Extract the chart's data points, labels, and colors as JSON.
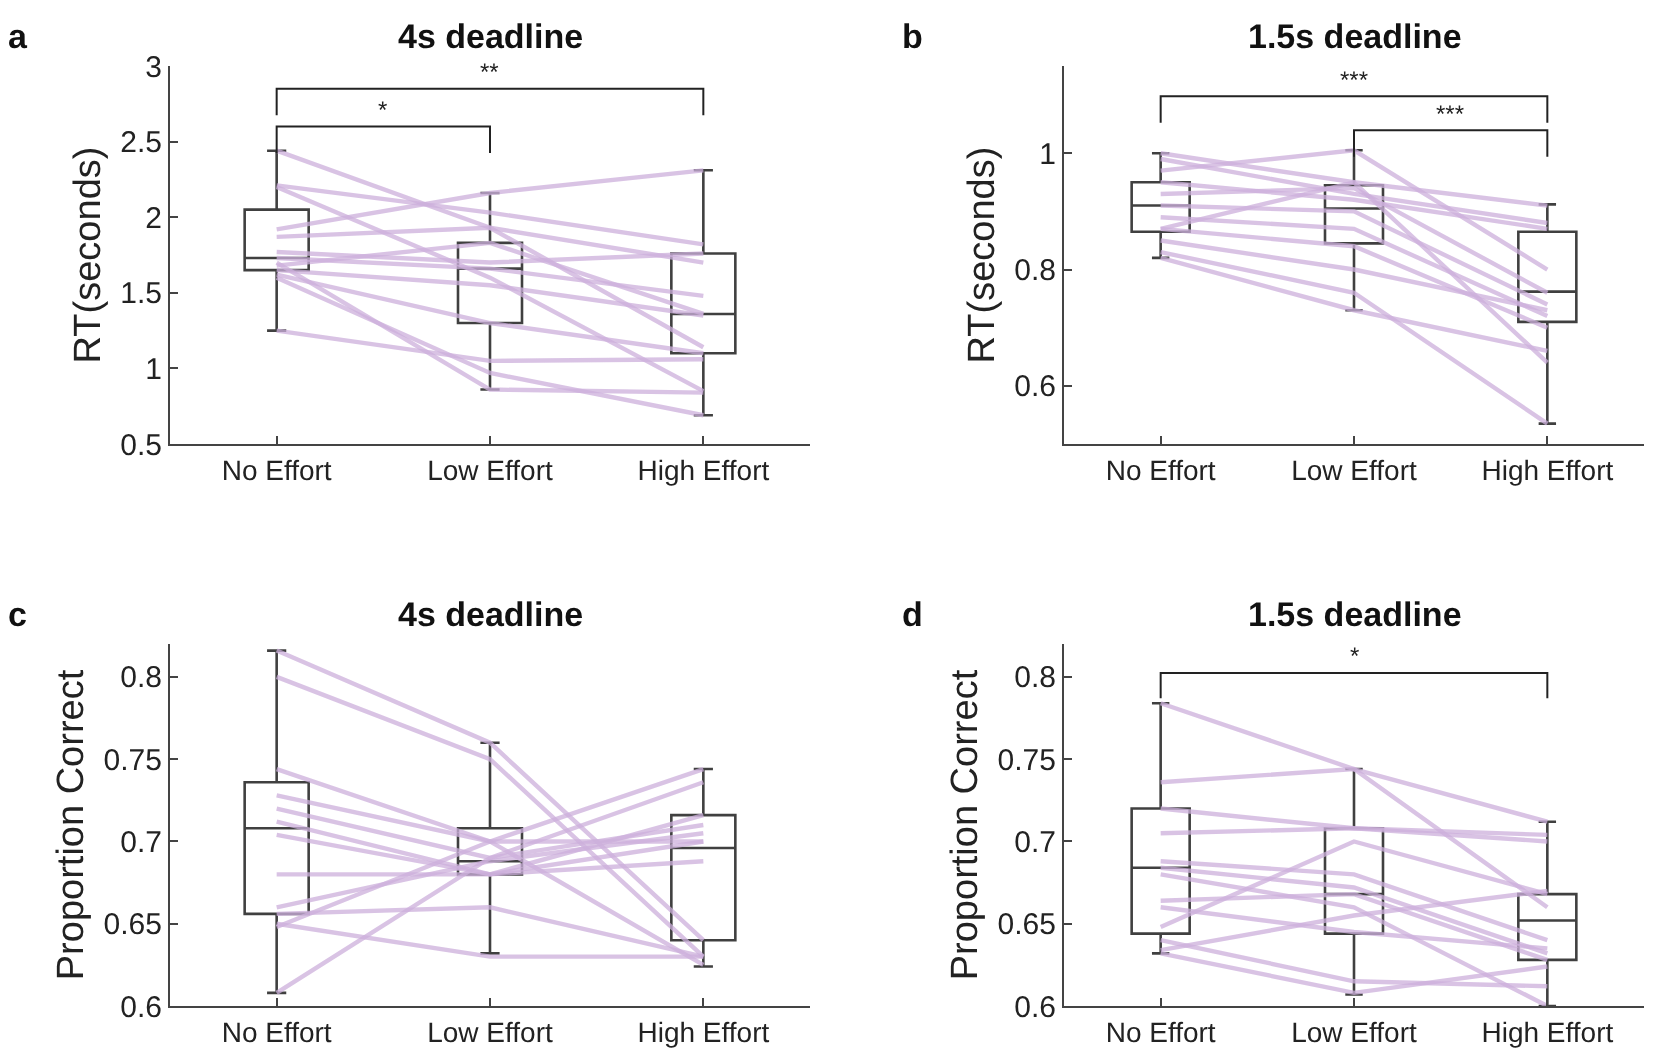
{
  "chart_data": [
    {
      "type": "box",
      "title": "4s deadline",
      "ylabel": "RT(seconds)",
      "categories": [
        "No Effort",
        "Low Effort",
        "High Effort"
      ],
      "ylim": [
        0.5,
        3
      ],
      "yticks": [
        0.5,
        1,
        1.5,
        2,
        2.5,
        3
      ],
      "annotations": [
        "a",
        "*",
        "**"
      ],
      "series": [
        {
          "type": "box",
          "color": "#404040",
          "boxes": [
            {
              "low": 1.25,
              "q1": 1.65,
              "median": 1.73,
              "q3": 2.05,
              "high": 2.44
            },
            {
              "low": 0.86,
              "q1": 1.3,
              "median": 1.66,
              "q3": 1.83,
              "high": 2.16
            },
            {
              "low": 0.69,
              "q1": 1.1,
              "median": 1.36,
              "q3": 1.76,
              "high": 2.31
            }
          ]
        },
        {
          "type": "line",
          "color": "#cdb0dc",
          "values": [
            2.44,
            1.93,
            1.14
          ]
        },
        {
          "type": "line",
          "color": "#cdb0dc",
          "values": [
            2.21,
            2.03,
            1.82
          ]
        },
        {
          "type": "line",
          "color": "#cdb0dc",
          "values": [
            1.92,
            2.16,
            2.31
          ]
        },
        {
          "type": "line",
          "color": "#cdb0dc",
          "values": [
            1.87,
            1.93,
            1.7
          ]
        },
        {
          "type": "line",
          "color": "#cdb0dc",
          "values": [
            1.77,
            1.7,
            1.76
          ]
        },
        {
          "type": "line",
          "color": "#cdb0dc",
          "values": [
            1.73,
            1.66,
            1.48
          ]
        },
        {
          "type": "line",
          "color": "#cdb0dc",
          "values": [
            1.68,
            1.83,
            1.36
          ]
        },
        {
          "type": "line",
          "color": "#cdb0dc",
          "values": [
            1.65,
            1.55,
            1.35
          ]
        },
        {
          "type": "line",
          "color": "#cdb0dc",
          "values": [
            1.62,
            1.3,
            1.1
          ]
        },
        {
          "type": "line",
          "color": "#cdb0dc",
          "values": [
            1.6,
            0.97,
            0.69
          ]
        },
        {
          "type": "line",
          "color": "#cdb0dc",
          "values": [
            1.25,
            1.05,
            1.06
          ]
        },
        {
          "type": "line",
          "color": "#cdb0dc",
          "values": [
            2.2,
            1.6,
            0.85
          ]
        },
        {
          "type": "line",
          "color": "#cdb0dc",
          "values": [
            1.7,
            0.86,
            0.84
          ]
        }
      ]
    },
    {
      "type": "box",
      "title": "1.5s deadline",
      "ylabel": "RT(seconds)",
      "categories": [
        "No Effort",
        "Low Effort",
        "High Effort"
      ],
      "ylim": [
        0.5,
        1.15
      ],
      "yticks": [
        0.6,
        0.8,
        1
      ],
      "annotations": [
        "b",
        "***",
        "***"
      ],
      "series": [
        {
          "type": "box",
          "color": "#404040",
          "boxes": [
            {
              "low": 0.82,
              "q1": 0.865,
              "median": 0.91,
              "q3": 0.95,
              "high": 1.0
            },
            {
              "low": 0.73,
              "q1": 0.845,
              "median": 0.905,
              "q3": 0.945,
              "high": 1.005
            },
            {
              "low": 0.535,
              "q1": 0.71,
              "median": 0.762,
              "q3": 0.865,
              "high": 0.912
            }
          ]
        },
        {
          "type": "line",
          "color": "#cdb0dc",
          "values": [
            1.0,
            0.95,
            0.91
          ]
        },
        {
          "type": "line",
          "color": "#cdb0dc",
          "values": [
            0.99,
            0.93,
            0.88
          ]
        },
        {
          "type": "line",
          "color": "#cdb0dc",
          "values": [
            0.97,
            1.005,
            0.8
          ]
        },
        {
          "type": "line",
          "color": "#cdb0dc",
          "values": [
            0.95,
            0.92,
            0.87
          ]
        },
        {
          "type": "line",
          "color": "#cdb0dc",
          "values": [
            0.93,
            0.94,
            0.76
          ]
        },
        {
          "type": "line",
          "color": "#cdb0dc",
          "values": [
            0.91,
            0.9,
            0.74
          ]
        },
        {
          "type": "line",
          "color": "#cdb0dc",
          "values": [
            0.89,
            0.87,
            0.72
          ]
        },
        {
          "type": "line",
          "color": "#cdb0dc",
          "values": [
            0.87,
            0.84,
            0.7
          ]
        },
        {
          "type": "line",
          "color": "#cdb0dc",
          "values": [
            0.87,
            0.95,
            0.64
          ]
        },
        {
          "type": "line",
          "color": "#cdb0dc",
          "values": [
            0.85,
            0.8,
            0.73
          ]
        },
        {
          "type": "line",
          "color": "#cdb0dc",
          "values": [
            0.83,
            0.76,
            0.535
          ]
        },
        {
          "type": "line",
          "color": "#cdb0dc",
          "values": [
            0.82,
            0.73,
            0.66
          ]
        }
      ]
    },
    {
      "type": "box",
      "title": "4s deadline",
      "ylabel": "Proportion Correct",
      "categories": [
        "No Effort",
        "Low Effort",
        "High Effort"
      ],
      "ylim": [
        0.6,
        0.82
      ],
      "yticks": [
        0.6,
        0.65,
        0.7,
        0.75,
        0.8
      ],
      "annotations": [
        "c"
      ],
      "series": [
        {
          "type": "box",
          "color": "#404040",
          "boxes": [
            {
              "low": 0.608,
              "q1": 0.656,
              "median": 0.708,
              "q3": 0.736,
              "high": 0.816
            },
            {
              "low": 0.632,
              "q1": 0.68,
              "median": 0.688,
              "q3": 0.708,
              "high": 0.76
            },
            {
              "low": 0.624,
              "q1": 0.64,
              "median": 0.696,
              "q3": 0.716,
              "high": 0.744
            }
          ]
        },
        {
          "type": "line",
          "color": "#cdb0dc",
          "values": [
            0.816,
            0.76,
            0.64
          ]
        },
        {
          "type": "line",
          "color": "#cdb0dc",
          "values": [
            0.8,
            0.75,
            0.63
          ]
        },
        {
          "type": "line",
          "color": "#cdb0dc",
          "values": [
            0.744,
            0.7,
            0.625
          ]
        },
        {
          "type": "line",
          "color": "#cdb0dc",
          "values": [
            0.728,
            0.7,
            0.7
          ]
        },
        {
          "type": "line",
          "color": "#cdb0dc",
          "values": [
            0.72,
            0.69,
            0.71
          ]
        },
        {
          "type": "line",
          "color": "#cdb0dc",
          "values": [
            0.712,
            0.68,
            0.688
          ]
        },
        {
          "type": "line",
          "color": "#cdb0dc",
          "values": [
            0.704,
            0.68,
            0.716
          ]
        },
        {
          "type": "line",
          "color": "#cdb0dc",
          "values": [
            0.68,
            0.68,
            0.7
          ]
        },
        {
          "type": "line",
          "color": "#cdb0dc",
          "values": [
            0.656,
            0.66,
            0.63
          ]
        },
        {
          "type": "line",
          "color": "#cdb0dc",
          "values": [
            0.65,
            0.63,
            0.63
          ]
        },
        {
          "type": "line",
          "color": "#cdb0dc",
          "values": [
            0.648,
            0.7,
            0.744
          ]
        },
        {
          "type": "line",
          "color": "#cdb0dc",
          "values": [
            0.608,
            0.69,
            0.736
          ]
        },
        {
          "type": "line",
          "color": "#cdb0dc",
          "values": [
            0.66,
            0.688,
            0.705
          ]
        }
      ]
    },
    {
      "type": "box",
      "title": "1.5s deadline",
      "ylabel": "Proportion Correct",
      "categories": [
        "No Effort",
        "Low Effort",
        "High Effort"
      ],
      "ylim": [
        0.6,
        0.82
      ],
      "yticks": [
        0.6,
        0.65,
        0.7,
        0.75,
        0.8
      ],
      "annotations": [
        "d",
        "*"
      ],
      "series": [
        {
          "type": "box",
          "color": "#404040",
          "boxes": [
            {
              "low": 0.632,
              "q1": 0.644,
              "median": 0.684,
              "q3": 0.72,
              "high": 0.784
            },
            {
              "low": 0.607,
              "q1": 0.644,
              "median": 0.668,
              "q3": 0.708,
              "high": 0.744
            },
            {
              "low": 0.6,
              "q1": 0.628,
              "median": 0.652,
              "q3": 0.668,
              "high": 0.712
            }
          ]
        },
        {
          "type": "line",
          "color": "#cdb0dc",
          "values": [
            0.784,
            0.744,
            0.712
          ]
        },
        {
          "type": "line",
          "color": "#cdb0dc",
          "values": [
            0.736,
            0.744,
            0.66
          ]
        },
        {
          "type": "line",
          "color": "#cdb0dc",
          "values": [
            0.72,
            0.708,
            0.7
          ]
        },
        {
          "type": "line",
          "color": "#cdb0dc",
          "values": [
            0.705,
            0.708,
            0.704
          ]
        },
        {
          "type": "line",
          "color": "#cdb0dc",
          "values": [
            0.688,
            0.68,
            0.64
          ]
        },
        {
          "type": "line",
          "color": "#cdb0dc",
          "values": [
            0.684,
            0.672,
            0.632
          ]
        },
        {
          "type": "line",
          "color": "#cdb0dc",
          "values": [
            0.68,
            0.66,
            0.6
          ]
        },
        {
          "type": "line",
          "color": "#cdb0dc",
          "values": [
            0.664,
            0.668,
            0.628
          ]
        },
        {
          "type": "line",
          "color": "#cdb0dc",
          "values": [
            0.648,
            0.7,
            0.668
          ]
        },
        {
          "type": "line",
          "color": "#cdb0dc",
          "values": [
            0.634,
            0.655,
            0.67
          ]
        },
        {
          "type": "line",
          "color": "#cdb0dc",
          "values": [
            0.632,
            0.608,
            0.624
          ]
        },
        {
          "type": "line",
          "color": "#cdb0dc",
          "values": [
            0.64,
            0.615,
            0.612
          ]
        },
        {
          "type": "line",
          "color": "#cdb0dc",
          "values": [
            0.66,
            0.645,
            0.635
          ]
        }
      ]
    }
  ]
}
